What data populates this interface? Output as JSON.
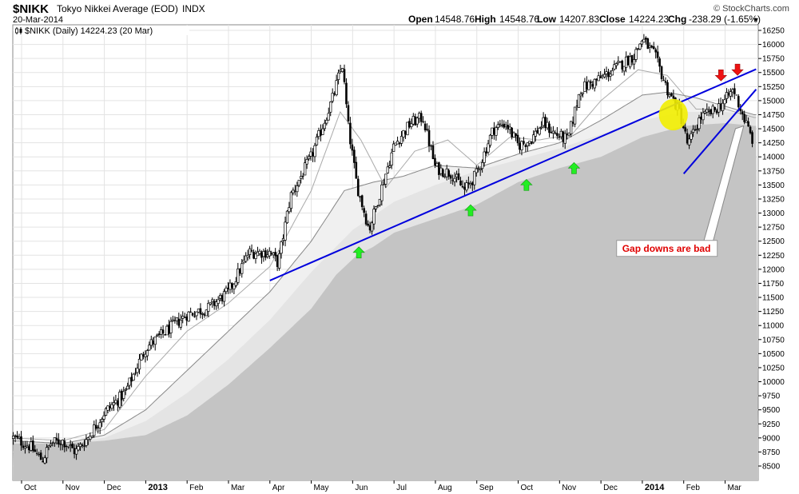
{
  "header": {
    "ticker": "$NIKK",
    "name": "Tokyo Nikkei Average (EOD)",
    "exchange": "INDX",
    "date": "20-Mar-2014",
    "brand": "© StockCharts.com",
    "open_label": "Open",
    "open": "14548.76",
    "high_label": "High",
    "high": "14548.76",
    "low_label": "Low",
    "low": "14207.83",
    "close_label": "Close",
    "close": "14224.23",
    "chg_label": "Chg",
    "chg": "-238.29 (-1.65%)"
  },
  "legend": {
    "text": "$NIKK (Daily) 14224.23 (20 Mar)"
  },
  "annotation": {
    "text": "Gap downs are bad"
  },
  "colors": {
    "trendline": "#0000dd",
    "up_arrow": "#22ee22",
    "down_arrow": "#ee1111",
    "highlight": "#f2ee00",
    "ma_fill_dark": "#c4c4c4",
    "ma_fill_light": "#e4e4e4",
    "ma_fill_lighter": "#f0f0f0",
    "grid": "#e3e3e3",
    "candle": "#000000"
  },
  "chart_data": {
    "type": "candlestick",
    "title": "$NIKK Tokyo Nikkei Average (EOD) INDX",
    "period": "Daily",
    "last": 14224.23,
    "ylim": [
      8250,
      16400
    ],
    "y_ticks": [
      8500,
      8750,
      9000,
      9250,
      9500,
      9750,
      10000,
      10250,
      10500,
      10750,
      11000,
      11250,
      11500,
      11750,
      12000,
      12250,
      12500,
      12750,
      13000,
      13250,
      13500,
      13750,
      14000,
      14250,
      14500,
      14750,
      15000,
      15250,
      15500,
      15750,
      16000,
      16250
    ],
    "x_labels": [
      {
        "label": "Oct",
        "x": 0.0,
        "bold": false
      },
      {
        "label": "Nov",
        "x": 1.0,
        "bold": false
      },
      {
        "label": "Dec",
        "x": 2.0,
        "bold": false
      },
      {
        "label": "2013",
        "x": 3.0,
        "bold": true
      },
      {
        "label": "Feb",
        "x": 4.0,
        "bold": false
      },
      {
        "label": "Mar",
        "x": 5.0,
        "bold": false
      },
      {
        "label": "Apr",
        "x": 6.0,
        "bold": false
      },
      {
        "label": "May",
        "x": 7.0,
        "bold": false
      },
      {
        "label": "Jun",
        "x": 8.0,
        "bold": false
      },
      {
        "label": "Jul",
        "x": 9.0,
        "bold": false
      },
      {
        "label": "Aug",
        "x": 10.0,
        "bold": false
      },
      {
        "label": "Sep",
        "x": 11.0,
        "bold": false
      },
      {
        "label": "Oct",
        "x": 12.0,
        "bold": false
      },
      {
        "label": "Nov",
        "x": 13.0,
        "bold": false
      },
      {
        "label": "Dec",
        "x": 14.0,
        "bold": false
      },
      {
        "label": "2014",
        "x": 15.0,
        "bold": true
      },
      {
        "label": "Feb",
        "x": 16.0,
        "bold": false
      },
      {
        "label": "Mar",
        "x": 17.0,
        "bold": false
      }
    ],
    "xlim": [
      -0.2,
      17.75
    ],
    "price_path": [
      [
        -0.2,
        9000
      ],
      [
        0.2,
        8850
      ],
      [
        0.5,
        8600
      ],
      [
        0.7,
        8900
      ],
      [
        1.0,
        8950
      ],
      [
        1.3,
        8750
      ],
      [
        1.6,
        9000
      ],
      [
        2.0,
        9450
      ],
      [
        2.5,
        9800
      ],
      [
        3.0,
        10600
      ],
      [
        3.5,
        10900
      ],
      [
        4.0,
        11200
      ],
      [
        4.5,
        11300
      ],
      [
        5.0,
        11600
      ],
      [
        5.5,
        12300
      ],
      [
        6.0,
        12300
      ],
      [
        6.2,
        12100
      ],
      [
        6.5,
        13300
      ],
      [
        7.0,
        14000
      ],
      [
        7.5,
        15000
      ],
      [
        7.75,
        15650
      ],
      [
        7.9,
        14500
      ],
      [
        8.1,
        13500
      ],
      [
        8.4,
        12700
      ],
      [
        8.6,
        13200
      ],
      [
        9.0,
        14200
      ],
      [
        9.4,
        14600
      ],
      [
        9.7,
        14700
      ],
      [
        10.0,
        13800
      ],
      [
        10.4,
        13700
      ],
      [
        10.7,
        13400
      ],
      [
        11.0,
        13700
      ],
      [
        11.4,
        14500
      ],
      [
        11.7,
        14600
      ],
      [
        12.0,
        14200
      ],
      [
        12.3,
        14300
      ],
      [
        12.6,
        14600
      ],
      [
        12.9,
        14400
      ],
      [
        13.2,
        14300
      ],
      [
        13.5,
        15200
      ],
      [
        14.0,
        15400
      ],
      [
        14.4,
        15600
      ],
      [
        14.8,
        15800
      ],
      [
        15.0,
        16100
      ],
      [
        15.3,
        15800
      ],
      [
        15.6,
        15200
      ],
      [
        15.9,
        14800
      ],
      [
        16.1,
        14200
      ],
      [
        16.4,
        14700
      ],
      [
        16.7,
        14800
      ],
      [
        17.0,
        15000
      ],
      [
        17.2,
        15200
      ],
      [
        17.5,
        14600
      ],
      [
        17.7,
        14224
      ]
    ],
    "ma_short": [
      [
        -0.2,
        9000
      ],
      [
        1.0,
        8950
      ],
      [
        2.0,
        9150
      ],
      [
        3.0,
        10100
      ],
      [
        4.0,
        10900
      ],
      [
        5.0,
        11400
      ],
      [
        6.0,
        12050
      ],
      [
        7.0,
        13400
      ],
      [
        7.7,
        14800
      ],
      [
        8.2,
        14300
      ],
      [
        8.8,
        13450
      ],
      [
        9.5,
        14100
      ],
      [
        10.3,
        14300
      ],
      [
        11.0,
        13850
      ],
      [
        11.8,
        14350
      ],
      [
        12.5,
        14300
      ],
      [
        13.3,
        14400
      ],
      [
        14.0,
        15000
      ],
      [
        14.9,
        15550
      ],
      [
        15.6,
        15450
      ],
      [
        16.3,
        14850
      ],
      [
        17.0,
        14850
      ],
      [
        17.7,
        14700
      ]
    ],
    "ma_long": [
      [
        -0.2,
        8950
      ],
      [
        1.0,
        8900
      ],
      [
        2.0,
        9050
      ],
      [
        3.0,
        9500
      ],
      [
        4.0,
        10200
      ],
      [
        5.0,
        10900
      ],
      [
        6.0,
        11600
      ],
      [
        7.0,
        12500
      ],
      [
        7.8,
        13400
      ],
      [
        8.5,
        13550
      ],
      [
        9.2,
        13650
      ],
      [
        10.0,
        13850
      ],
      [
        11.0,
        13800
      ],
      [
        12.0,
        14050
      ],
      [
        13.0,
        14250
      ],
      [
        14.0,
        14650
      ],
      [
        15.0,
        15100
      ],
      [
        15.6,
        15150
      ],
      [
        16.3,
        15050
      ],
      [
        17.0,
        14900
      ],
      [
        17.7,
        14750
      ]
    ],
    "band_light": [
      [
        -0.2,
        8950
      ],
      [
        1.0,
        8920
      ],
      [
        2.0,
        9000
      ],
      [
        3.0,
        9300
      ],
      [
        4.0,
        9800
      ],
      [
        5.0,
        10400
      ],
      [
        6.0,
        11100
      ],
      [
        7.0,
        11950
      ],
      [
        8.0,
        12700
      ],
      [
        9.0,
        13200
      ],
      [
        10.0,
        13500
      ],
      [
        11.0,
        13750
      ],
      [
        12.0,
        13950
      ],
      [
        13.0,
        14150
      ],
      [
        14.0,
        14400
      ],
      [
        15.0,
        14650
      ],
      [
        16.0,
        14800
      ],
      [
        17.0,
        14800
      ],
      [
        17.7,
        14750
      ]
    ],
    "band_dark": [
      [
        -0.2,
        8900
      ],
      [
        1.0,
        8900
      ],
      [
        2.0,
        8950
      ],
      [
        3.0,
        9050
      ],
      [
        4.0,
        9400
      ],
      [
        5.0,
        9950
      ],
      [
        6.0,
        10600
      ],
      [
        7.0,
        11300
      ],
      [
        7.6,
        11900
      ],
      [
        8.1,
        12250
      ],
      [
        8.5,
        12400
      ],
      [
        9.0,
        12650
      ],
      [
        10.0,
        12900
      ],
      [
        11.0,
        13150
      ],
      [
        12.0,
        13550
      ],
      [
        13.0,
        13800
      ],
      [
        14.0,
        14000
      ],
      [
        15.0,
        14350
      ],
      [
        16.0,
        14550
      ],
      [
        17.0,
        14600
      ],
      [
        17.7,
        14550
      ]
    ],
    "trendlines": [
      {
        "name": "main-trendline",
        "x1": 6.0,
        "y1": 11800,
        "x2": 17.75,
        "y2": 15560
      },
      {
        "name": "secondary-trendline",
        "x1": 16.0,
        "y1": 13700,
        "x2": 17.75,
        "y2": 15200
      }
    ],
    "up_arrows": [
      {
        "x": 8.15,
        "y": 12300
      },
      {
        "x": 10.85,
        "y": 13050
      },
      {
        "x": 12.2,
        "y": 13500
      },
      {
        "x": 13.35,
        "y": 13800
      }
    ],
    "down_arrows": [
      {
        "x": 16.9,
        "y": 15450
      },
      {
        "x": 17.3,
        "y": 15550
      }
    ],
    "highlight_ellipse": {
      "cx": 15.75,
      "cy": 14750,
      "rx": 0.35,
      "ry": 280
    },
    "annotation_point": {
      "x": 16.85,
      "y": 12400
    },
    "pointer_targets": [
      {
        "x": 17.25,
        "y": 14500
      },
      {
        "x": 17.45,
        "y": 14550
      }
    ]
  }
}
